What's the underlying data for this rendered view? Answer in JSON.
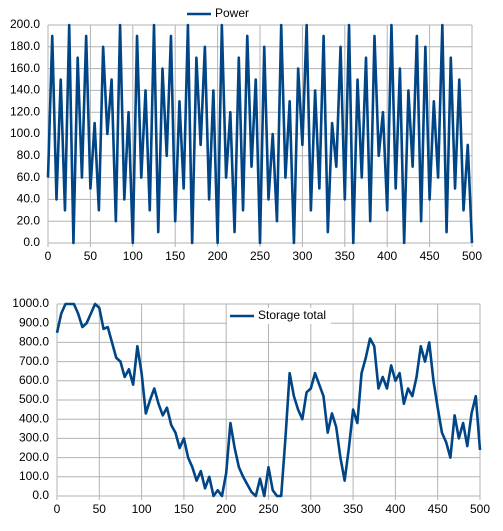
{
  "chart_data": [
    {
      "type": "line",
      "x": [
        0,
        5,
        10,
        15,
        20,
        25,
        30,
        35,
        40,
        45,
        50,
        55,
        60,
        65,
        70,
        75,
        80,
        85,
        90,
        95,
        100,
        105,
        110,
        115,
        120,
        125,
        130,
        135,
        140,
        145,
        150,
        155,
        160,
        165,
        170,
        175,
        180,
        185,
        190,
        195,
        200,
        205,
        210,
        215,
        220,
        225,
        230,
        235,
        240,
        245,
        250,
        255,
        260,
        265,
        270,
        275,
        280,
        285,
        290,
        295,
        300,
        305,
        310,
        315,
        320,
        325,
        330,
        335,
        340,
        345,
        350,
        355,
        360,
        365,
        370,
        375,
        380,
        385,
        390,
        395,
        400,
        405,
        410,
        415,
        420,
        425,
        430,
        435,
        440,
        445,
        450,
        455,
        460,
        465,
        470,
        475,
        480,
        485,
        490,
        495,
        500
      ],
      "series": [
        {
          "name": "Power",
          "color": "#004586",
          "values": [
            60,
            190,
            40,
            150,
            30,
            200,
            0,
            170,
            60,
            190,
            50,
            110,
            30,
            180,
            100,
            150,
            20,
            200,
            40,
            120,
            0,
            190,
            60,
            140,
            30,
            200,
            10,
            160,
            80,
            190,
            20,
            130,
            50,
            200,
            0,
            170,
            90,
            180,
            40,
            140,
            0,
            200,
            60,
            120,
            10,
            170,
            30,
            190,
            70,
            150,
            0,
            180,
            40,
            100,
            20,
            200,
            60,
            130,
            0,
            160,
            90,
            200,
            30,
            140,
            50,
            190,
            10,
            110,
            70,
            180,
            40,
            200,
            0,
            150,
            60,
            170,
            20,
            190,
            80,
            120,
            30,
            200,
            50,
            160,
            0,
            140,
            70,
            190,
            20,
            180,
            40,
            130,
            60,
            200,
            10,
            170,
            50,
            150,
            30,
            90,
            0
          ]
        }
      ],
      "xlim": [
        0,
        500
      ],
      "xticks": [
        0,
        50,
        100,
        150,
        200,
        250,
        300,
        350,
        400,
        450,
        500
      ],
      "ylim": [
        0,
        200
      ],
      "yticks": [
        {
          "value": 0,
          "label": "0.0"
        },
        {
          "value": 20,
          "label": "20.0"
        },
        {
          "value": 40,
          "label": "40.0"
        },
        {
          "value": 60,
          "label": "60.0"
        },
        {
          "value": 80,
          "label": "80.0"
        },
        {
          "value": 100,
          "label": "100.0"
        },
        {
          "value": 120,
          "label": "120.0"
        },
        {
          "value": 140,
          "label": "140.0"
        },
        {
          "value": 160,
          "label": "160.0"
        },
        {
          "value": 180,
          "label": "180.0"
        },
        {
          "value": 200,
          "label": "200.0"
        }
      ],
      "grid": true,
      "legend": "top"
    },
    {
      "type": "line",
      "x": [
        0,
        5,
        10,
        15,
        20,
        25,
        30,
        35,
        40,
        45,
        50,
        55,
        60,
        65,
        70,
        75,
        80,
        85,
        90,
        95,
        100,
        105,
        110,
        115,
        120,
        125,
        130,
        135,
        140,
        145,
        150,
        155,
        160,
        165,
        170,
        175,
        180,
        185,
        190,
        195,
        200,
        205,
        210,
        215,
        220,
        225,
        230,
        235,
        240,
        245,
        250,
        255,
        260,
        265,
        270,
        275,
        280,
        285,
        290,
        295,
        300,
        305,
        310,
        315,
        320,
        325,
        330,
        335,
        340,
        345,
        350,
        355,
        360,
        365,
        370,
        375,
        380,
        385,
        390,
        395,
        400,
        405,
        410,
        415,
        420,
        425,
        430,
        435,
        440,
        445,
        450,
        455,
        460,
        465,
        470,
        475,
        480,
        485,
        490,
        495,
        500
      ],
      "series": [
        {
          "name": "Storage total",
          "color": "#004586",
          "values": [
            850,
            950,
            1000,
            1000,
            1000,
            950,
            880,
            900,
            950,
            1000,
            980,
            870,
            880,
            800,
            720,
            700,
            620,
            660,
            580,
            780,
            640,
            430,
            500,
            560,
            480,
            420,
            460,
            370,
            330,
            250,
            300,
            200,
            150,
            80,
            130,
            40,
            100,
            0,
            30,
            0,
            120,
            380,
            250,
            150,
            100,
            60,
            20,
            0,
            90,
            0,
            150,
            30,
            0,
            0,
            300,
            640,
            520,
            450,
            400,
            540,
            560,
            640,
            580,
            520,
            330,
            430,
            360,
            200,
            80,
            250,
            450,
            380,
            640,
            720,
            820,
            780,
            560,
            620,
            560,
            680,
            600,
            640,
            480,
            560,
            520,
            620,
            780,
            700,
            800,
            600,
            460,
            330,
            280,
            200,
            420,
            300,
            380,
            260,
            430,
            520,
            240
          ]
        }
      ],
      "xlim": [
        0,
        500
      ],
      "xticks": [
        0,
        50,
        100,
        150,
        200,
        250,
        300,
        350,
        400,
        450,
        500
      ],
      "ylim": [
        0,
        1000
      ],
      "yticks": [
        {
          "value": 0,
          "label": "0.0"
        },
        {
          "value": 100,
          "label": "100.0"
        },
        {
          "value": 200,
          "label": "200.0"
        },
        {
          "value": 300,
          "label": "300.0"
        },
        {
          "value": 400,
          "label": "400.0"
        },
        {
          "value": 500,
          "label": "500.0"
        },
        {
          "value": 600,
          "label": "600.0"
        },
        {
          "value": 700,
          "label": "700.0"
        },
        {
          "value": 800,
          "label": "800.0"
        },
        {
          "value": 900,
          "label": "900.0"
        },
        {
          "value": 1000,
          "label": "1000.0"
        }
      ],
      "grid": true,
      "legend": "top"
    }
  ]
}
